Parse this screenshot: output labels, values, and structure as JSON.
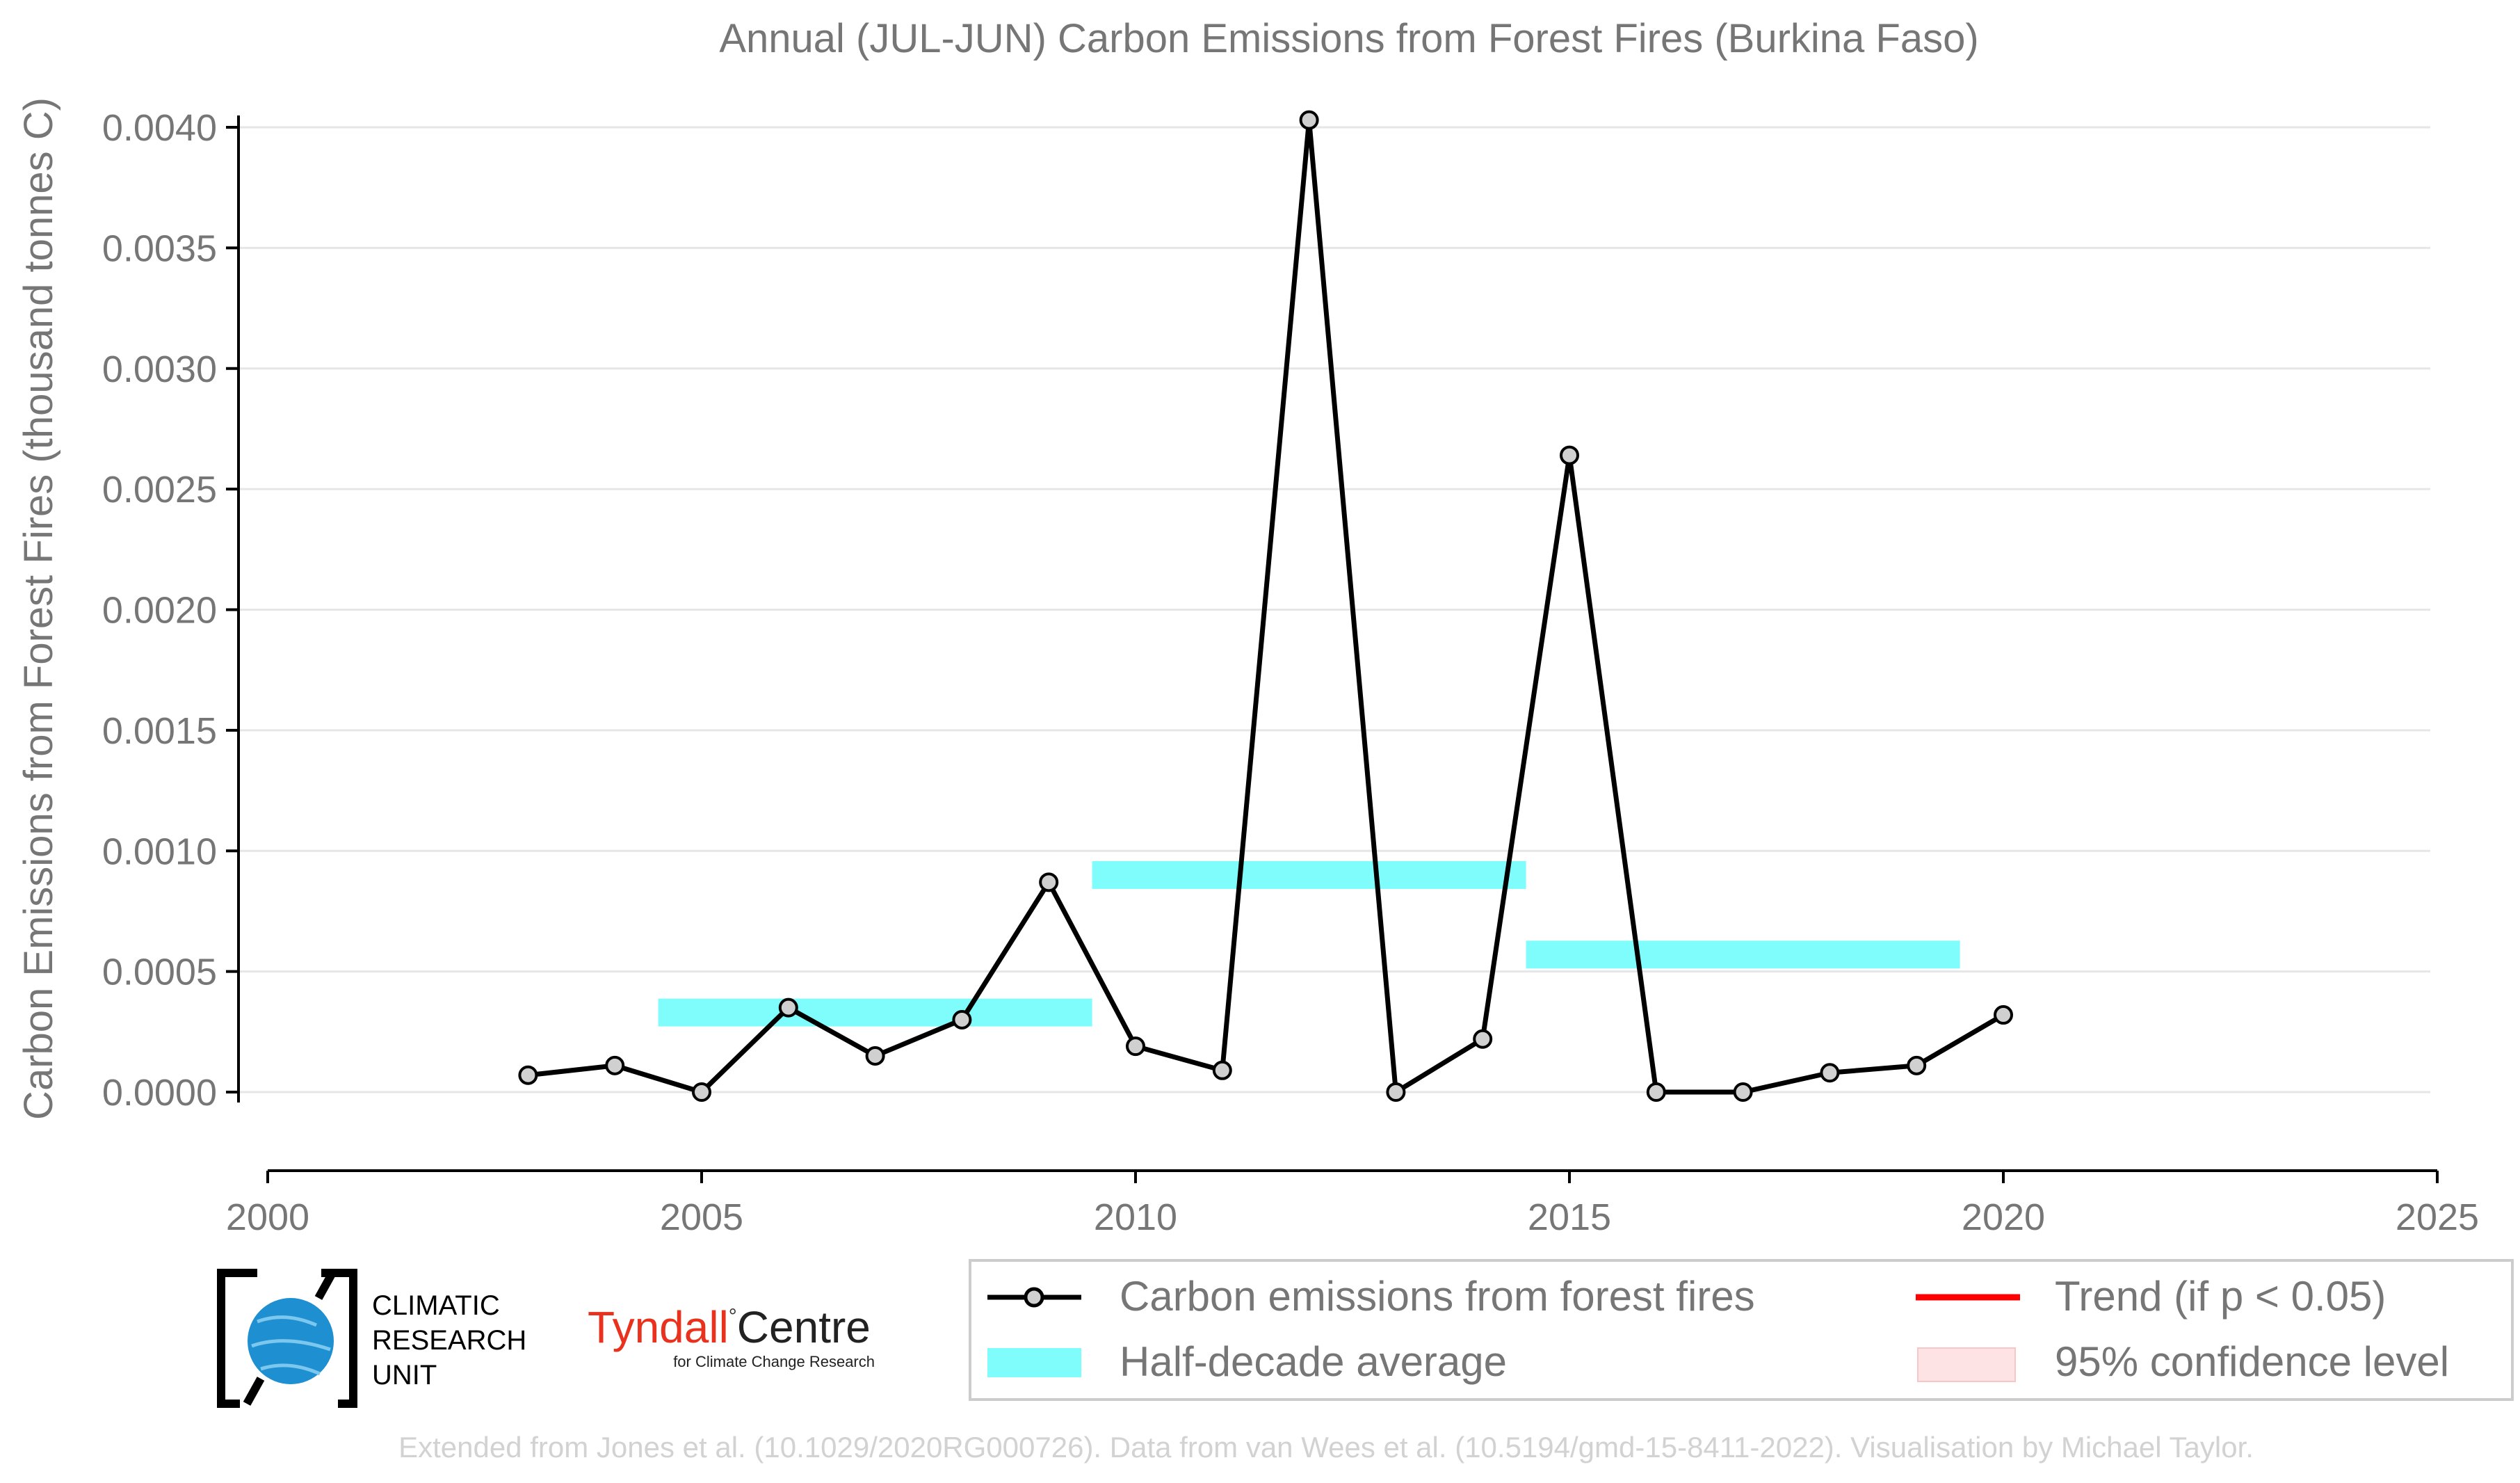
{
  "chart_data": {
    "type": "line",
    "title": "Annual (JUL-JUN) Carbon Emissions from Forest Fires (Burkina Faso)",
    "ylabel": "Carbon Emissions from Forest Fires (thousand tonnes C)",
    "xlabel": "",
    "xlim": [
      2000,
      2025
    ],
    "ylim": [
      -0.00032,
      0.004
    ],
    "x_ticks": [
      2000,
      2005,
      2010,
      2015,
      2020,
      2025
    ],
    "y_ticks": [
      0.0,
      0.0005,
      0.001,
      0.0015,
      0.002,
      0.0025,
      0.003,
      0.0035,
      0.004
    ],
    "y_tick_labels": [
      "0.0000",
      "0.0005",
      "0.0010",
      "0.0015",
      "0.0020",
      "0.0025",
      "0.0030",
      "0.0035",
      "0.0040"
    ],
    "grid": "horizontal",
    "legend_position": "bottom-right",
    "series": [
      {
        "name": "Carbon emissions from forest fires",
        "color": "#000000",
        "marker_fill": "#d0d0d0",
        "x": [
          2003,
          2004,
          2005,
          2006,
          2007,
          2008,
          2009,
          2010,
          2011,
          2012,
          2013,
          2014,
          2015,
          2016,
          2017,
          2018,
          2019,
          2020
        ],
        "y": [
          7e-05,
          0.00011,
          0.0,
          0.00035,
          0.00015,
          0.0003,
          0.00087,
          0.00019,
          9e-05,
          0.00403,
          0.0,
          0.00022,
          0.00264,
          0.0,
          0.0,
          8e-05,
          0.00011,
          0.00032
        ]
      },
      {
        "name": "Half-decade average",
        "color": "#7ffdfd",
        "segments": [
          {
            "x_start": 2004.5,
            "x_end": 2009.5,
            "y": 0.00033
          },
          {
            "x_start": 2009.5,
            "x_end": 2014.5,
            "y": 0.0009
          },
          {
            "x_start": 2014.5,
            "x_end": 2019.5,
            "y": 0.00057
          }
        ]
      }
    ],
    "legend": [
      {
        "label": "Carbon emissions from forest fires",
        "kind": "line-marker",
        "color": "#000000"
      },
      {
        "label": "Trend (if p < 0.05)",
        "kind": "line",
        "color": "#ff0000"
      },
      {
        "label": "Half-decade average",
        "kind": "band",
        "color": "#7ffdfd"
      },
      {
        "label": "95% confidence level",
        "kind": "band",
        "color": "#fde3e3"
      }
    ]
  },
  "logos": {
    "cru_lines": [
      "CLIMATIC",
      "RESEARCH",
      "UNIT"
    ],
    "tyndall_name": "Tyndall",
    "tyndall_centre": "Centre",
    "tyndall_sub": "for Climate Change Research",
    "tyndall_color": "#e8321e"
  },
  "credit": "Extended from Jones et al. (10.1029/2020RG000726). Data from van Wees et al. (10.5194/gmd-15-8411-2022). Visualisation by Michael Taylor."
}
